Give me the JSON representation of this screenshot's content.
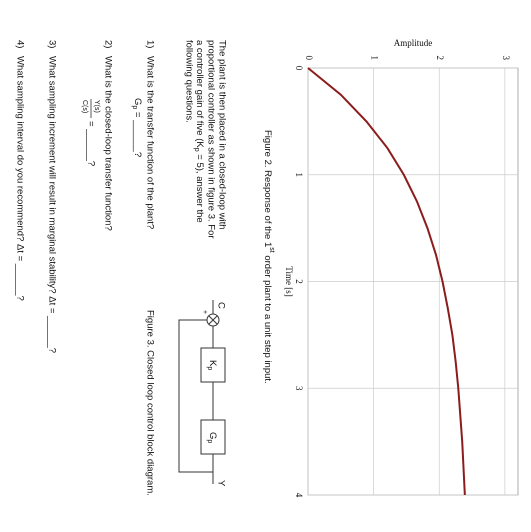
{
  "chart_data": {
    "type": "line",
    "x_label": "Time [s]",
    "y_label": "Amplitude",
    "x": [
      0,
      0.25,
      0.5,
      0.75,
      1,
      1.25,
      1.5,
      1.75,
      2,
      2.25,
      2.5,
      2.75,
      3,
      3.5,
      4
    ],
    "series": [
      {
        "color": "#8b1c1c",
        "values": [
          0,
          0.5,
          0.89,
          1.21,
          1.46,
          1.66,
          1.82,
          1.95,
          2.05,
          2.13,
          2.2,
          2.25,
          2.29,
          2.35,
          2.39
        ]
      }
    ],
    "xlim": [
      0,
      4
    ],
    "ylim": [
      0,
      3.2
    ],
    "xticks": [
      0,
      1,
      2,
      3,
      4
    ],
    "yticks": [
      0,
      1,
      2,
      3
    ],
    "grid": true
  },
  "figure2_caption": [
    "Figure 2.  Response of the 1",
    "st",
    " order plant to a unit step input."
  ],
  "paragraph": [
    "The plant is then placed in a closed-loop with",
    "proportional controller as shown in figure 3.  For",
    "a controller gain of five (K",
    "p",
    " = 5), answer the",
    "following questions."
  ],
  "figure3": {
    "caption": "Figure 3.  Closed loop control block diagram.",
    "input": "C",
    "plus": "+",
    "controller": [
      "K",
      "p"
    ],
    "plant": [
      "G",
      "p"
    ],
    "output": "Y"
  },
  "questions": [
    {
      "number": "1)",
      "text": "What is the transfer function of the plant?",
      "answer": [
        "G",
        "p",
        " = ______?"
      ]
    },
    {
      "number": "2)",
      "text": "What is the closed-loop transfer function?",
      "answer": [
        "Y(s)",
        "C(s)",
        "= ______?"
      ]
    },
    {
      "number": "3)",
      "text": "What sampling increment will result in marginal stability?  Δt = ______?"
    },
    {
      "number": "4)",
      "text": "What sampling interval do you recommend?  Δt = ______?"
    }
  ]
}
